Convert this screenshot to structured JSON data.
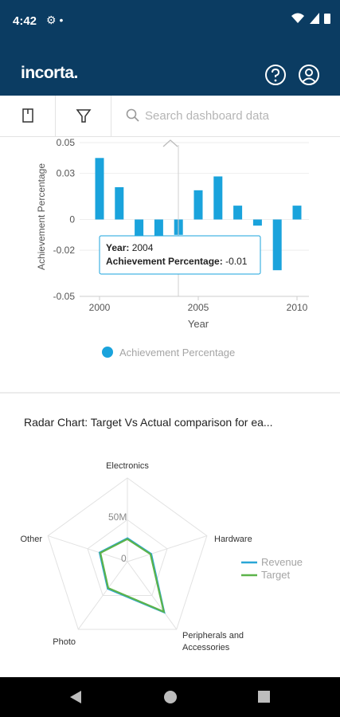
{
  "status": {
    "time": "4:42"
  },
  "app": {
    "logo": "incorta."
  },
  "search": {
    "placeholder": "Search dashboard data"
  },
  "chart_data": [
    {
      "type": "bar",
      "xlabel": "Year",
      "ylabel": "Achievement Percentage",
      "x": [
        2000,
        2001,
        2002,
        2003,
        2004,
        2005,
        2006,
        2007,
        2008,
        2009,
        2010
      ],
      "values": [
        0.04,
        0.021,
        -0.03,
        -0.011,
        -0.01,
        0.019,
        0.028,
        0.009,
        -0.004,
        -0.033,
        0.009
      ],
      "ylim": [
        -0.05,
        0.05
      ],
      "yticks": [
        "0.05",
        "0.03",
        "0",
        "-0.02",
        "-0.05"
      ],
      "xticks": [
        "2000",
        "2005",
        "2010"
      ],
      "legend": "bottom",
      "series": [
        {
          "name": "Achievement Percentage",
          "color": "#1aa3dc"
        }
      ],
      "tooltip": {
        "year_label": "Year:",
        "year_value": "2004",
        "metric_label": "Achievement Percentage:",
        "metric_value": "-0.01"
      }
    },
    {
      "type": "radar",
      "title": "Radar Chart: Target Vs Actual comparison for ea...",
      "axes": [
        "Electronics",
        "Hardware",
        "Peripherals and Accessories",
        "Photo",
        "Other"
      ],
      "ticks": [
        "50M",
        "0"
      ],
      "series": [
        {
          "name": "Revenue",
          "color": "#2aa6d6",
          "values": [
            28,
            30,
            75,
            40,
            35
          ]
        },
        {
          "name": "Target",
          "color": "#5cb34a",
          "values": [
            27,
            29,
            74,
            39,
            34
          ]
        }
      ],
      "max": 100
    }
  ]
}
